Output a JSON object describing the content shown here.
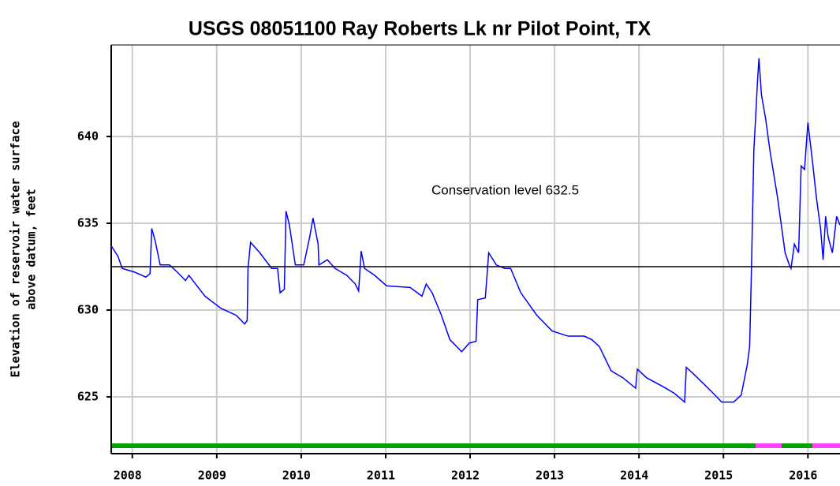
{
  "chart_data": {
    "type": "line",
    "title": "USGS 08051100 Ray Roberts Lk nr Pilot Point, TX",
    "ylabel": [
      "Elevation of reservoir water surface",
      "above datum, feet"
    ],
    "color": "#0000ff",
    "grid": true,
    "xlim": [
      2007.75,
      2016.38
    ],
    "xticks": [
      2008,
      2009,
      2010,
      2011,
      2012,
      2013,
      2014,
      2015,
      2016
    ],
    "ylim": [
      621.73,
      645.27
    ],
    "yticks": [
      625,
      630,
      635,
      640
    ],
    "reference_line": {
      "value": 632.5,
      "label": "Conservation level 632.5",
      "color": "#000000"
    },
    "x": [
      2007.75,
      2007.83,
      2007.88,
      2008.02,
      2008.16,
      2008.21,
      2008.23,
      2008.27,
      2008.33,
      2008.44,
      2008.53,
      2008.63,
      2008.67,
      2008.86,
      2009.05,
      2009.23,
      2009.33,
      2009.36,
      2009.37,
      2009.4,
      2009.51,
      2009.65,
      2009.72,
      2009.75,
      2009.8,
      2009.82,
      2009.86,
      2009.93,
      2010.03,
      2010.1,
      2010.14,
      2010.2,
      2010.21,
      2010.31,
      2010.4,
      2010.54,
      2010.64,
      2010.68,
      2010.71,
      2010.75,
      2010.87,
      2011.01,
      2011.29,
      2011.43,
      2011.48,
      2011.55,
      2011.66,
      2011.76,
      2011.9,
      2011.99,
      2012.07,
      2012.09,
      2012.18,
      2012.22,
      2012.31,
      2012.41,
      2012.48,
      2012.6,
      2012.79,
      2012.97,
      2013.16,
      2013.35,
      2013.44,
      2013.53,
      2013.67,
      2013.81,
      2013.96,
      2013.98,
      2014.09,
      2014.28,
      2014.42,
      2014.54,
      2014.56,
      2014.65,
      2014.84,
      2014.98,
      2015.12,
      2015.21,
      2015.28,
      2015.31,
      2015.33,
      2015.36,
      2015.38,
      2015.4,
      2015.42,
      2015.45,
      2015.5,
      2015.55,
      2015.64,
      2015.73,
      2015.78,
      2015.8,
      2015.84,
      2015.89,
      2015.92,
      2015.96,
      2016.0,
      2016.06,
      2016.1,
      2016.15,
      2016.18,
      2016.21,
      2016.24,
      2016.29,
      2016.34,
      2016.38
    ],
    "values": [
      633.7,
      633.1,
      632.4,
      632.2,
      631.9,
      632.1,
      634.7,
      634.0,
      632.6,
      632.6,
      632.2,
      631.7,
      632.0,
      630.8,
      630.1,
      629.7,
      629.2,
      629.4,
      632.4,
      633.9,
      633.3,
      632.4,
      632.4,
      631.0,
      631.2,
      635.7,
      634.9,
      632.6,
      632.6,
      634.2,
      635.3,
      633.8,
      632.6,
      632.9,
      632.4,
      632.0,
      631.5,
      631.1,
      633.4,
      632.4,
      632.0,
      631.4,
      631.3,
      630.8,
      631.5,
      631.0,
      629.7,
      628.3,
      627.6,
      628.1,
      628.2,
      630.6,
      630.7,
      633.3,
      632.6,
      632.4,
      632.4,
      631.0,
      629.7,
      628.8,
      628.5,
      628.5,
      628.3,
      627.9,
      626.5,
      626.1,
      625.5,
      626.6,
      626.1,
      625.6,
      625.2,
      624.7,
      626.7,
      626.3,
      625.4,
      624.7,
      624.7,
      625.1,
      626.8,
      627.9,
      632.0,
      639.2,
      641.0,
      642.9,
      644.5,
      642.4,
      641.0,
      639.2,
      636.5,
      633.3,
      632.6,
      632.4,
      633.8,
      633.3,
      638.3,
      638.1,
      640.8,
      638.3,
      636.5,
      634.7,
      632.9,
      635.4,
      634.2,
      633.3,
      635.4,
      634.9
    ]
  }
}
